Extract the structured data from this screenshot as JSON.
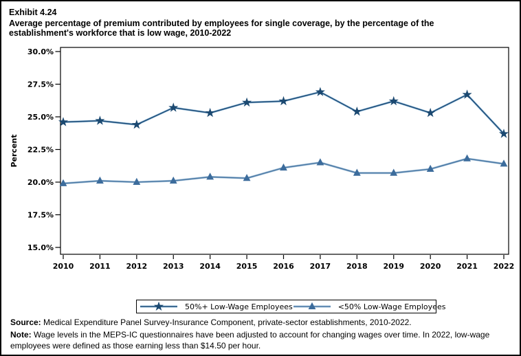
{
  "header": {
    "exhibit_label": "Exhibit 4.24",
    "title": "Average percentage of premium contributed by employees for single coverage, by the percentage of the establishment's workforce that is low wage, 2010-2022"
  },
  "chart_data": {
    "type": "line",
    "x": [
      2010,
      2011,
      2012,
      2013,
      2014,
      2015,
      2016,
      2017,
      2018,
      2019,
      2020,
      2021,
      2022
    ],
    "series": [
      {
        "name": "50%+ Low-Wage Employees",
        "marker": "star",
        "color": "#1B4971",
        "line_color": "#1F4E79",
        "halo_color": "#9DC3DF",
        "values": [
          24.6,
          24.7,
          24.4,
          25.7,
          25.3,
          26.1,
          26.2,
          26.9,
          25.4,
          26.2,
          25.3,
          26.7,
          23.7
        ]
      },
      {
        "name": "<50% Low-Wage Employees",
        "marker": "triangle",
        "color": "#3C6C9C",
        "line_color": "#4E7BA6",
        "halo_color": "#A9C5DC",
        "values": [
          19.9,
          20.1,
          20.0,
          20.1,
          20.4,
          20.3,
          21.1,
          21.5,
          20.7,
          20.7,
          21.0,
          21.8,
          21.4
        ]
      }
    ],
    "title": "",
    "xlabel": "",
    "ylabel": "Percent",
    "ylim": [
      15,
      30
    ],
    "yticks": [
      30,
      27.5,
      25,
      22.5,
      20,
      17.5,
      15
    ],
    "ytick_format": "percent_1dp",
    "grid": false,
    "legend_position": "bottom-boxed",
    "frame_color": "#000000",
    "background_color": "#FFFFFF"
  },
  "footer": {
    "source_label": "Source:",
    "source_text": " Medical Expenditure Panel Survey-Insurance Component, private-sector establishments, 2010-2022.",
    "note_label": "Note:",
    "note_text": " Wage levels in the MEPS-IC questionnaires have been adjusted to account for changing wages over time.  In 2022, low-wage employees were defined as those earning less than $14.50 per hour."
  }
}
